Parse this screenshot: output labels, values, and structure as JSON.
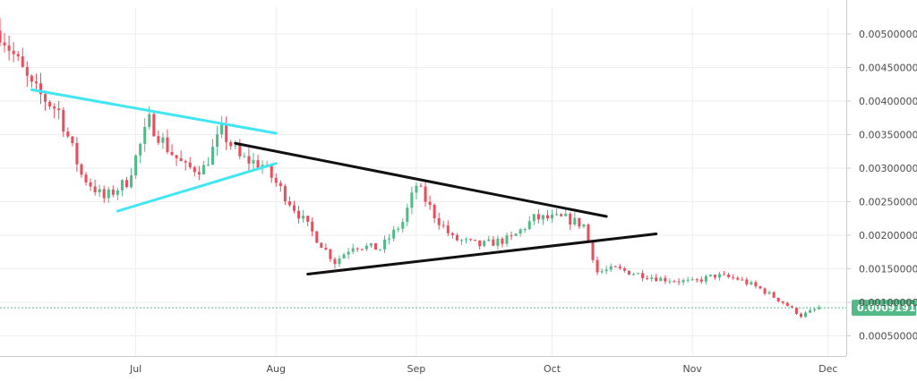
{
  "chart_data": {
    "type": "candlestick",
    "title": "",
    "xlabel": "",
    "ylabel": "",
    "x_ticks": [
      {
        "label": "Jul",
        "date": "2018-07-01"
      },
      {
        "label": "Aug",
        "date": "2018-08-01"
      },
      {
        "label": "Sep",
        "date": "2018-09-01"
      },
      {
        "label": "Oct",
        "date": "2018-10-01"
      },
      {
        "label": "Nov",
        "date": "2018-11-01"
      },
      {
        "label": "Dec",
        "date": "2018-12-01"
      }
    ],
    "y_ticks": [
      "0.00050000",
      "0.00100000",
      "0.00150000",
      "0.00200000",
      "0.00250000",
      "0.00300000",
      "0.00350000",
      "0.00400000",
      "0.00450000",
      "0.00500000"
    ],
    "y_tick_values": [
      0.0005,
      0.001,
      0.0015,
      0.002,
      0.0025,
      0.003,
      0.0035,
      0.004,
      0.0045,
      0.005
    ],
    "ylim": [
      0.0002,
      0.0054
    ],
    "xlim": [
      "2018-06-01",
      "2018-12-05"
    ],
    "grid": true,
    "current_price": {
      "value": 0.00091915,
      "label": "0.00091915",
      "color": "#53b987"
    },
    "colors": {
      "up": "#53b987",
      "down": "#eb4d5c",
      "grid": "#eeeeee",
      "axis": "#cccccc",
      "cyan": "#40e6f2",
      "black": "#111111"
    },
    "anchors": [
      [
        "2018-06-01",
        0.00505
      ],
      [
        "2018-06-08",
        0.0042
      ],
      [
        "2018-06-14",
        0.00385
      ],
      [
        "2018-06-19",
        0.0029
      ],
      [
        "2018-06-24",
        0.00255
      ],
      [
        "2018-06-29",
        0.0028
      ],
      [
        "2018-07-04",
        0.0037
      ],
      [
        "2018-07-08",
        0.0033
      ],
      [
        "2018-07-12",
        0.003
      ],
      [
        "2018-07-16",
        0.003
      ],
      [
        "2018-07-20",
        0.00355
      ],
      [
        "2018-07-24",
        0.00315
      ],
      [
        "2018-07-29",
        0.00305
      ],
      [
        "2018-08-04",
        0.0025
      ],
      [
        "2018-08-10",
        0.00195
      ],
      [
        "2018-08-14",
        0.0016
      ],
      [
        "2018-08-18",
        0.00185
      ],
      [
        "2018-08-24",
        0.0018
      ],
      [
        "2018-08-29",
        0.0022
      ],
      [
        "2018-09-01",
        0.00275
      ],
      [
        "2018-09-05",
        0.0023
      ],
      [
        "2018-09-09",
        0.00195
      ],
      [
        "2018-09-15",
        0.00185
      ],
      [
        "2018-09-22",
        0.00195
      ],
      [
        "2018-09-27",
        0.00225
      ],
      [
        "2018-10-04",
        0.00225
      ],
      [
        "2018-10-08",
        0.00215
      ],
      [
        "2018-10-11",
        0.00145
      ],
      [
        "2018-10-15",
        0.0015
      ],
      [
        "2018-10-18",
        0.00145
      ],
      [
        "2018-10-25",
        0.00135
      ],
      [
        "2018-11-01",
        0.0013
      ],
      [
        "2018-11-06",
        0.0014
      ],
      [
        "2018-11-11",
        0.00135
      ],
      [
        "2018-11-16",
        0.0012
      ],
      [
        "2018-11-21",
        0.001
      ],
      [
        "2018-11-25",
        0.0008
      ],
      [
        "2018-11-29",
        0.00092
      ]
    ],
    "trendlines": [
      {
        "color": "cyan",
        "from": [
          "2018-06-08",
          0.00417
        ],
        "to": [
          "2018-08-01",
          0.00352
        ]
      },
      {
        "color": "cyan",
        "from": [
          "2018-06-27",
          0.00236
        ],
        "to": [
          "2018-08-01",
          0.00307
        ]
      },
      {
        "color": "black",
        "from": [
          "2018-07-23",
          0.00337
        ],
        "to": [
          "2018-10-13",
          0.00228
        ]
      },
      {
        "color": "black",
        "from": [
          "2018-08-08",
          0.00142
        ],
        "to": [
          "2018-10-24",
          0.00202
        ]
      }
    ]
  }
}
